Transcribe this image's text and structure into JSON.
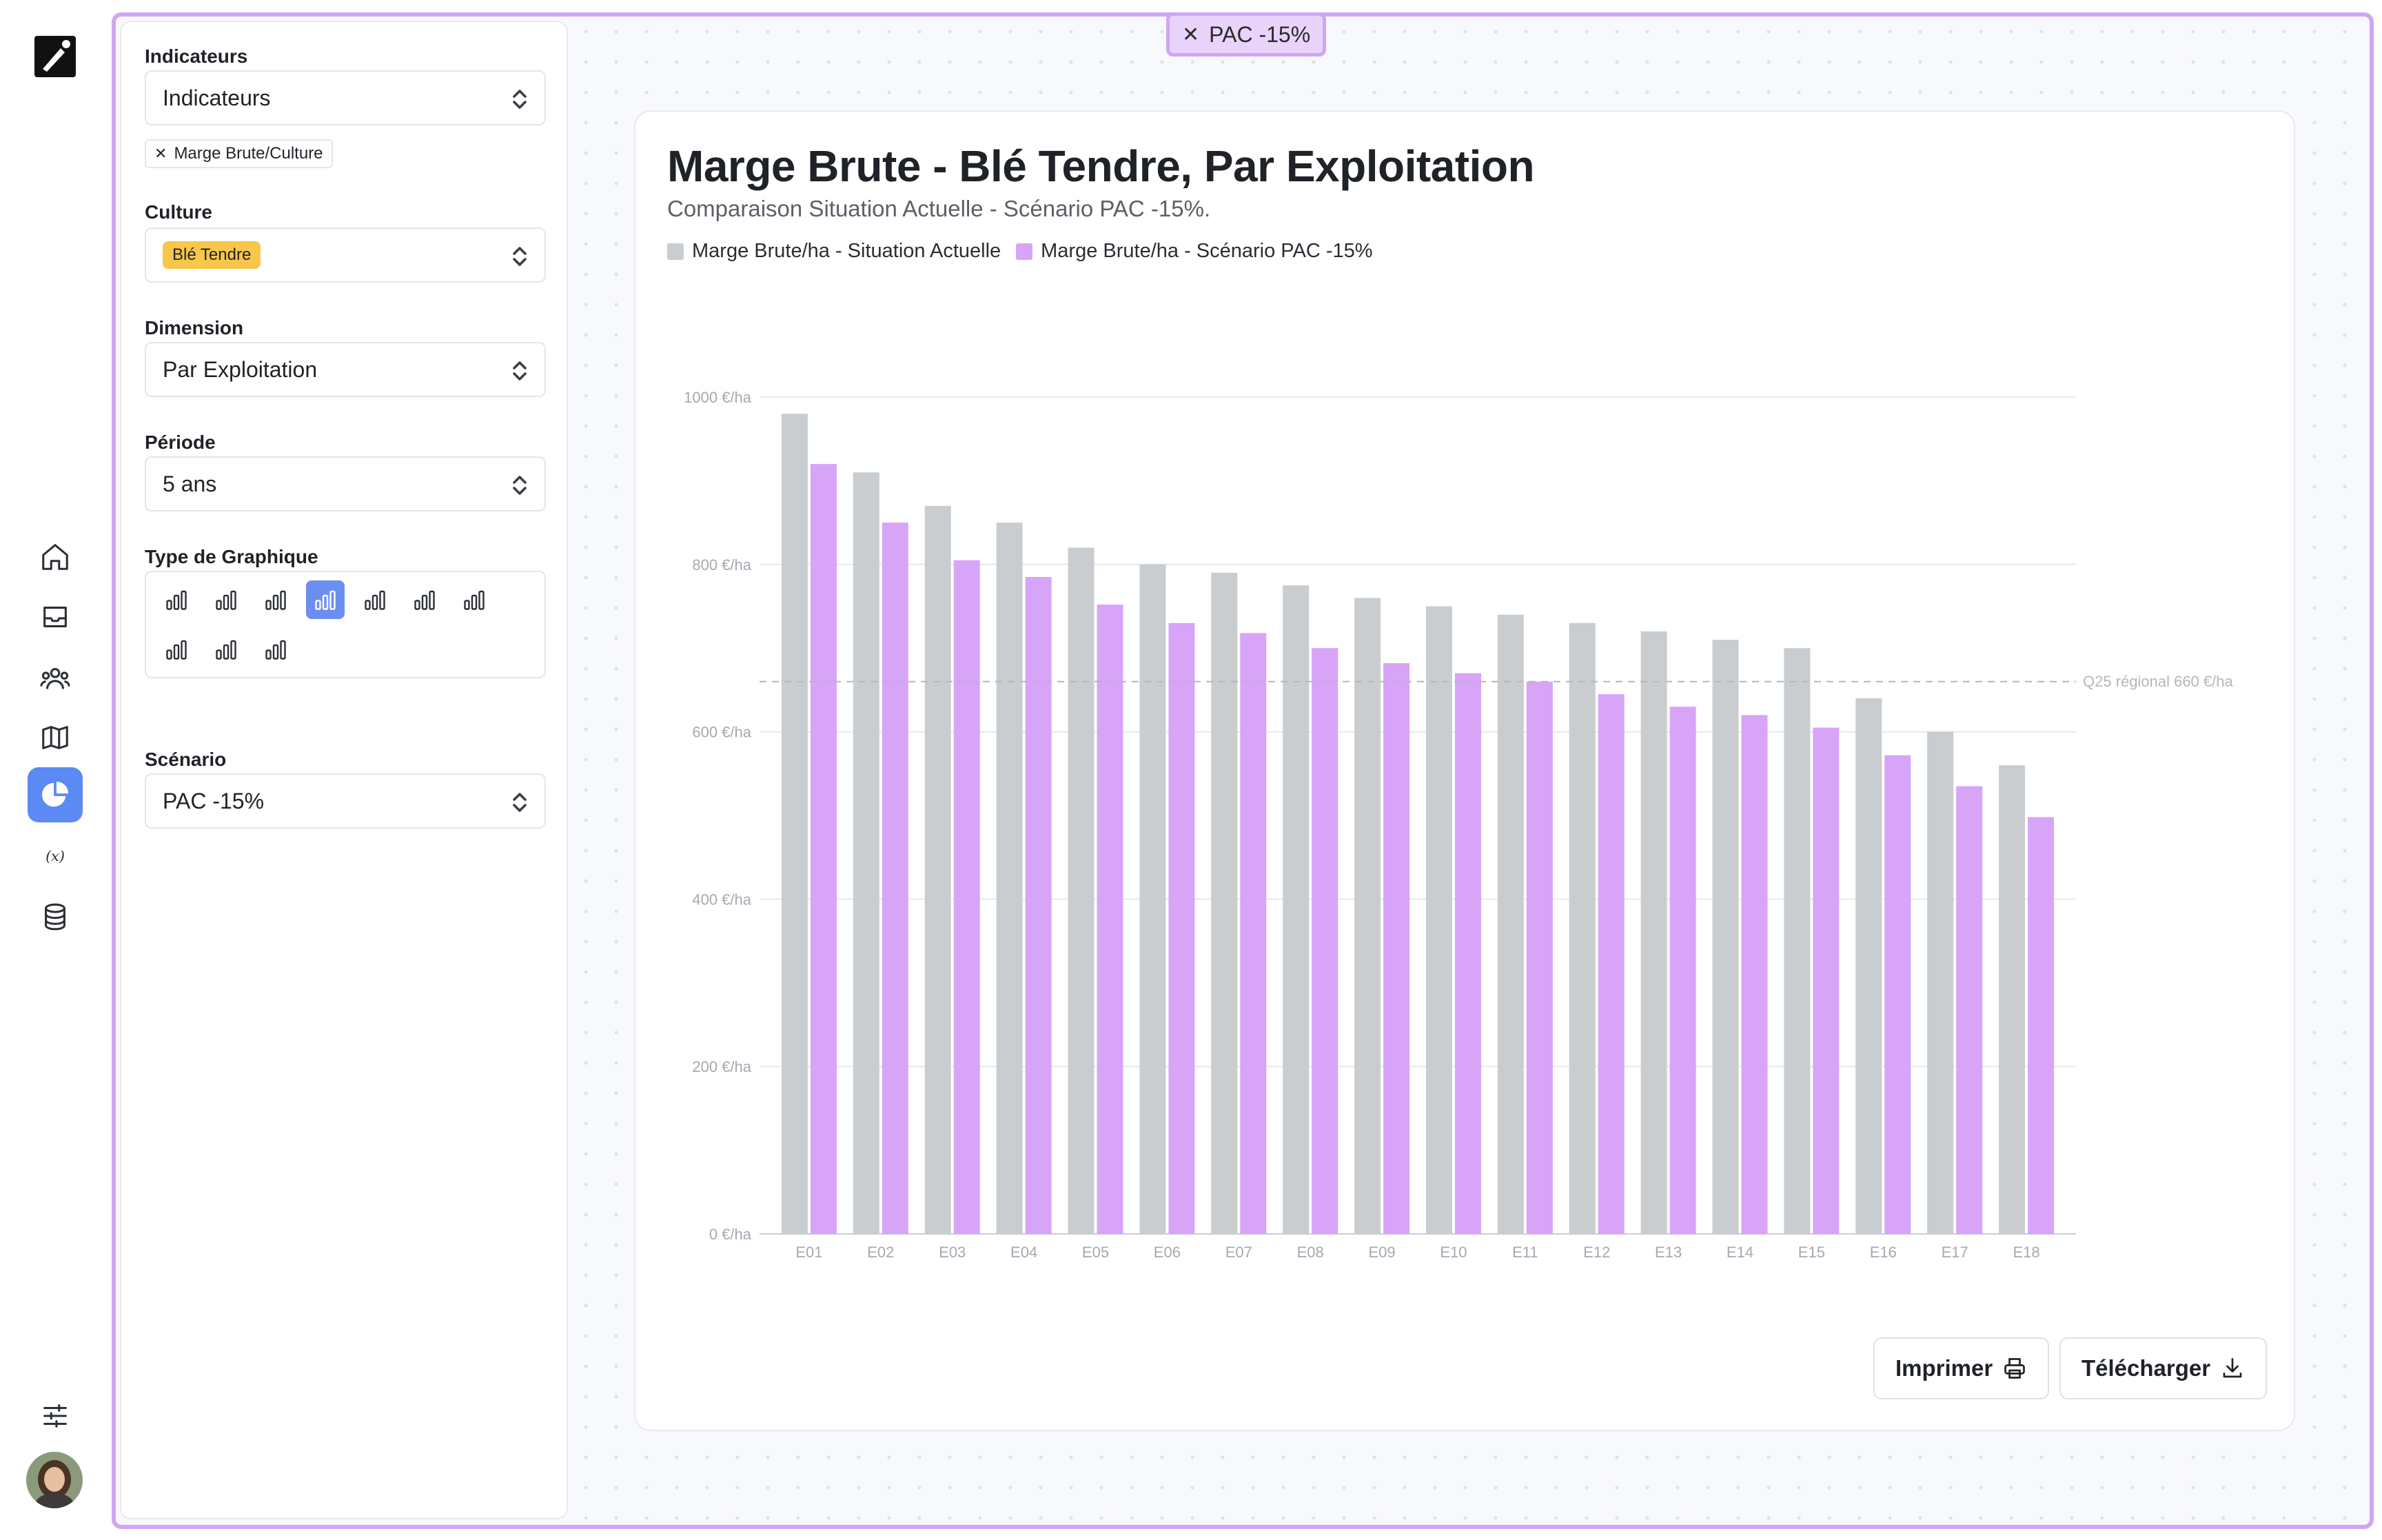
{
  "frame_tag": {
    "label": "PAC -15%"
  },
  "panel": {
    "indicateurs": {
      "label": "Indicateurs",
      "value": "Indicateurs",
      "chip": "Marge Brute/Culture"
    },
    "culture": {
      "label": "Culture",
      "value": "Blé Tendre"
    },
    "dimension": {
      "label": "Dimension",
      "value": "Par Exploitation"
    },
    "periode": {
      "label": "Période",
      "value": "5 ans"
    },
    "type_graphique": {
      "label": "Type de Graphique",
      "selected_index": 3
    },
    "scenario": {
      "label": "Scénario",
      "value": "PAC -15%"
    }
  },
  "card": {
    "title": "Marge Brute - Blé Tendre, Par Exploitation",
    "subtitle": "Comparaison Situation Actuelle - Scénario PAC -15%.",
    "print_label": "Imprimer",
    "download_label": "Télécharger"
  },
  "colors": {
    "accent": "#5b8af5",
    "frame": "#cfa6f3",
    "series_actual": "#c9cdd0",
    "series_scenario": "#d8a4f8",
    "tag_yellow": "#f7c64a"
  },
  "nav_icons": [
    "home-icon",
    "inbox-icon",
    "users-icon",
    "map-icon",
    "pie-chart-icon",
    "variable-icon",
    "database-icon",
    "sliders-icon"
  ],
  "chart_data": {
    "type": "bar",
    "title": "Marge Brute - Blé Tendre, Par Exploitation",
    "subtitle": "Comparaison Situation Actuelle - Scénario PAC -15%.",
    "categories": [
      "E01",
      "E02",
      "E03",
      "E04",
      "E05",
      "E06",
      "E07",
      "E08",
      "E09",
      "E10",
      "E11",
      "E12",
      "E13",
      "E14",
      "E15",
      "E16",
      "E17",
      "E18"
    ],
    "series": [
      {
        "name": "Marge Brute/ha - Situation Actuelle",
        "color": "#c9cdd0",
        "values": [
          980,
          910,
          870,
          850,
          820,
          800,
          790,
          775,
          760,
          750,
          740,
          730,
          720,
          710,
          700,
          640,
          600,
          560
        ]
      },
      {
        "name": "Marge Brute/ha - Scénario PAC -15%",
        "color": "#d8a4f8",
        "values": [
          920,
          850,
          805,
          785,
          752,
          730,
          718,
          700,
          682,
          670,
          660,
          645,
          630,
          620,
          605,
          572,
          535,
          498
        ]
      }
    ],
    "y_ticks": [
      {
        "value": 0,
        "label": "0 €/ha"
      },
      {
        "value": 200,
        "label": "200 €/ha"
      },
      {
        "value": 400,
        "label": "400 €/ha"
      },
      {
        "value": 600,
        "label": "600 €/ha"
      },
      {
        "value": 800,
        "label": "800 €/ha"
      },
      {
        "value": 1000,
        "label": "1000 €/ha"
      }
    ],
    "ylim": [
      0,
      1000
    ],
    "reference_line": {
      "value": 660,
      "label": "Q25 régional 660 €/ha"
    },
    "legend_position": "top-left",
    "grid": true
  }
}
